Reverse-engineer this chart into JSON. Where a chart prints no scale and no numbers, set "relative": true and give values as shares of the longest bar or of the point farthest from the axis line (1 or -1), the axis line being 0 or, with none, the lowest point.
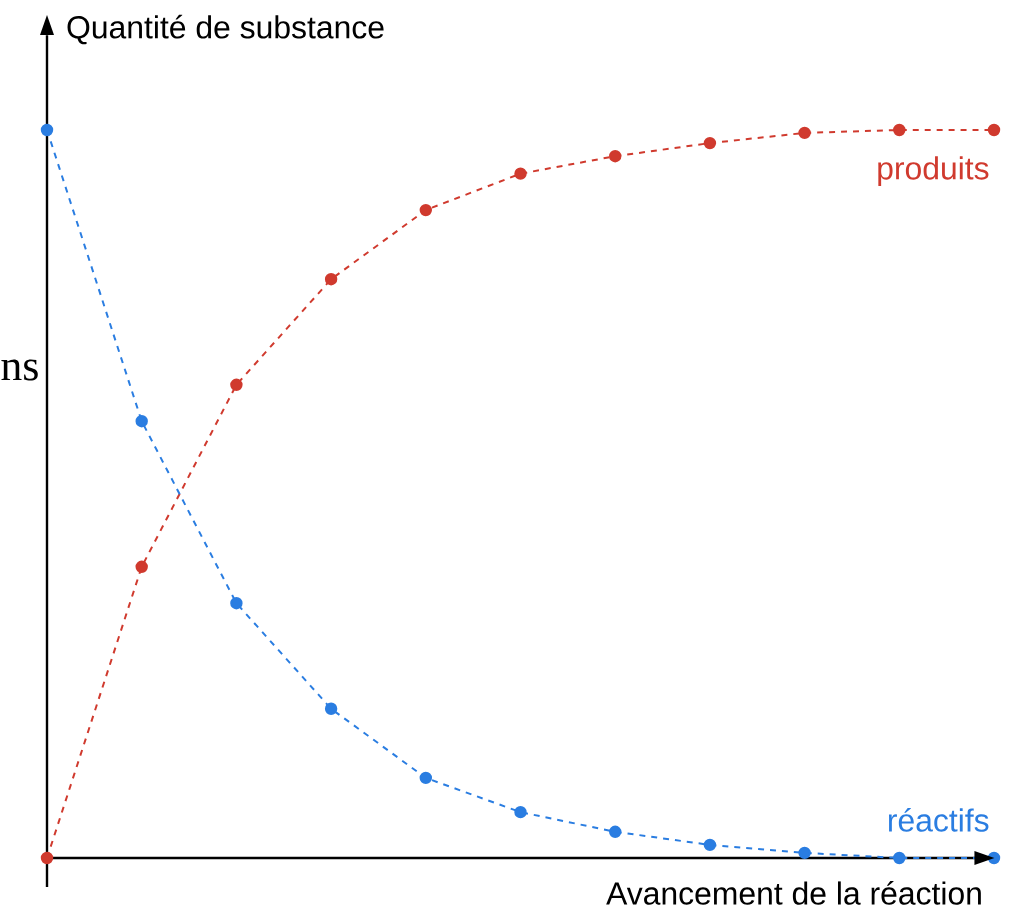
{
  "chart_data": {
    "type": "line",
    "relative": true,
    "xlabel": "Avancement de la réaction",
    "ylabel": "Quantité de substance",
    "categories": [
      null,
      null,
      null,
      null,
      null,
      null,
      null,
      null,
      null,
      null,
      null
    ],
    "series": [
      {
        "name": "produits",
        "color": "#d03a2e",
        "values": [
          0,
          0.4,
          0.65,
          0.795,
          0.89,
          0.94,
          0.964,
          0.982,
          0.996,
          1.0,
          1.0
        ]
      },
      {
        "name": "réactifs",
        "color": "#2a7de1",
        "values": [
          1,
          0.6,
          0.35,
          0.205,
          0.11,
          0.063,
          0.036,
          0.018,
          0.007,
          0,
          0
        ]
      }
    ],
    "marker": "circle",
    "line_style": "dashed",
    "annotations": [
      "ns"
    ]
  }
}
